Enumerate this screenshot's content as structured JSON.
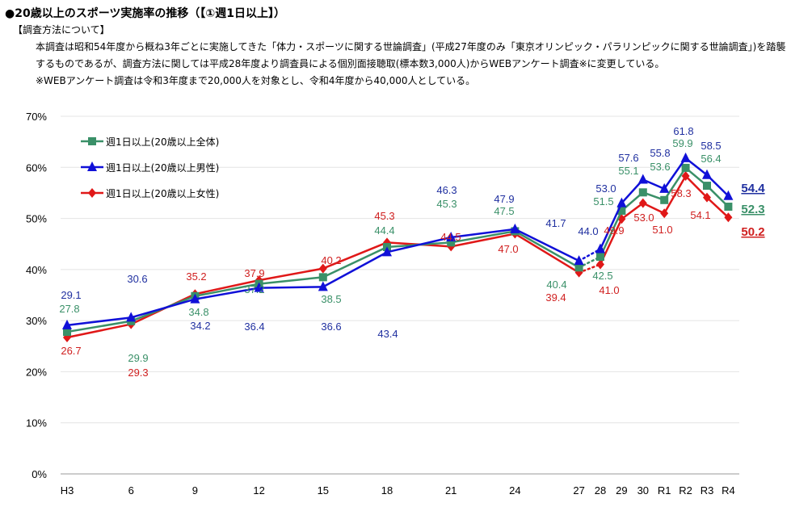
{
  "header": {
    "title": "●20歳以上のスポーツ実施率の推移（【①週1日以上】）",
    "method_heading": "【調査方法について】",
    "notes": [
      "本調査は昭和54年度から概ね3年ごとに実施してきた「体力・スポーツに関する世論調査」(平成27年度のみ「東京オリンピック・パラリンピックに関する世論調査」)を踏襲",
      "するものであるが、調査方法に関しては平成28年度より調査員による個別面接聴取(標本数3,000人)からWEBアンケート調査※に変更している。",
      "※WEBアンケート調査は令和3年度まで20,000人を対象とし、令和4年度から40,000人としている。"
    ]
  },
  "chart_data": {
    "type": "line",
    "categories": [
      "H3",
      "6",
      "9",
      "12",
      "15",
      "18",
      "21",
      "24",
      "27",
      "28",
      "29",
      "30",
      "R1",
      "R2",
      "R3",
      "R4"
    ],
    "ylim": [
      0,
      70
    ],
    "yticks": [
      "0%",
      "10%",
      "20%",
      "30%",
      "40%",
      "50%",
      "60%",
      "70%"
    ],
    "grid": true,
    "legend_position": "top-left",
    "dotted_segment": [
      "27",
      "28"
    ],
    "series": [
      {
        "name": "週1日以上(20歳以上全体)",
        "color": "#3a9068",
        "marker": "square",
        "values": [
          27.8,
          29.9,
          34.8,
          37.2,
          38.5,
          44.4,
          45.3,
          47.5,
          40.4,
          42.5,
          51.5,
          55.1,
          53.6,
          59.9,
          56.4,
          52.3
        ]
      },
      {
        "name": "週1日以上(20歳以上男性)",
        "color": "#1010d8",
        "marker": "triangle",
        "values": [
          29.1,
          30.6,
          34.2,
          36.4,
          36.6,
          43.4,
          46.3,
          47.9,
          41.7,
          44.0,
          53.0,
          57.6,
          55.8,
          61.8,
          58.5,
          54.4
        ]
      },
      {
        "name": "週1日以上(20歳以上女性)",
        "color": "#e01818",
        "marker": "diamond",
        "values": [
          26.7,
          29.3,
          35.2,
          37.9,
          40.2,
          45.3,
          44.5,
          47.0,
          39.4,
          41.0,
          49.9,
          53.0,
          51.0,
          58.3,
          54.1,
          50.2
        ]
      }
    ],
    "label_colors": [
      "#3a9068",
      "#2030a0",
      "#d02020"
    ]
  }
}
